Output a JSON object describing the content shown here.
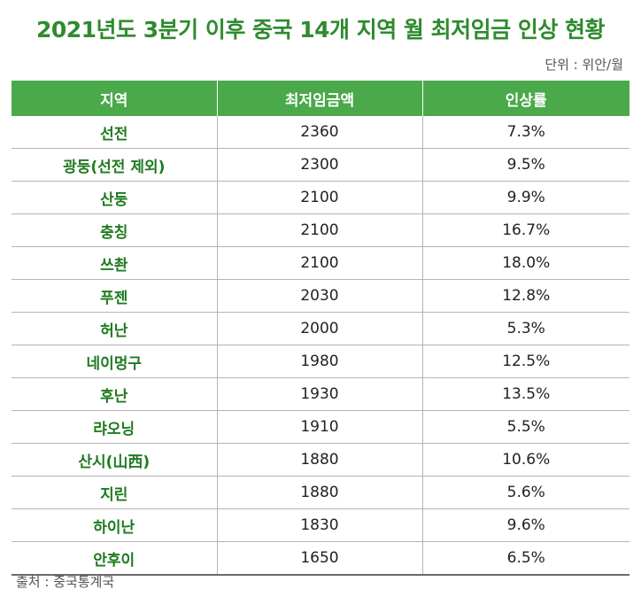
{
  "title": "2021년도 3분기 이후 중국 14개 지역 월 최저임금 인상 현황",
  "unit": "단위 : 위안/월",
  "table": {
    "headers": [
      "지역",
      "최저임금액",
      "인상률"
    ],
    "rows": [
      {
        "region": "선전",
        "wage": "2360",
        "rate": "7.3%"
      },
      {
        "region": "광둥(선전 제외)",
        "wage": "2300",
        "rate": "9.5%"
      },
      {
        "region": "산둥",
        "wage": "2100",
        "rate": "9.9%"
      },
      {
        "region": "충칭",
        "wage": "2100",
        "rate": "16.7%"
      },
      {
        "region": "쓰촨",
        "wage": "2100",
        "rate": "18.0%"
      },
      {
        "region": "푸젠",
        "wage": "2030",
        "rate": "12.8%"
      },
      {
        "region": "허난",
        "wage": "2000",
        "rate": "5.3%"
      },
      {
        "region": "네이멍구",
        "wage": "1980",
        "rate": "12.5%"
      },
      {
        "region": "후난",
        "wage": "1930",
        "rate": "13.5%"
      },
      {
        "region": "랴오닝",
        "wage": "1910",
        "rate": "5.5%"
      },
      {
        "region": "산시(山西)",
        "wage": "1880",
        "rate": "10.6%"
      },
      {
        "region": "지린",
        "wage": "1880",
        "rate": "5.6%"
      },
      {
        "region": "하이난",
        "wage": "1830",
        "rate": "9.6%"
      },
      {
        "region": "안후이",
        "wage": "1650",
        "rate": "6.5%"
      }
    ]
  },
  "source": "출처 : 중국통계국",
  "colors": {
    "accent": "#4aa94a",
    "title": "#2e8b2e",
    "region_text": "#1f7a1f"
  }
}
